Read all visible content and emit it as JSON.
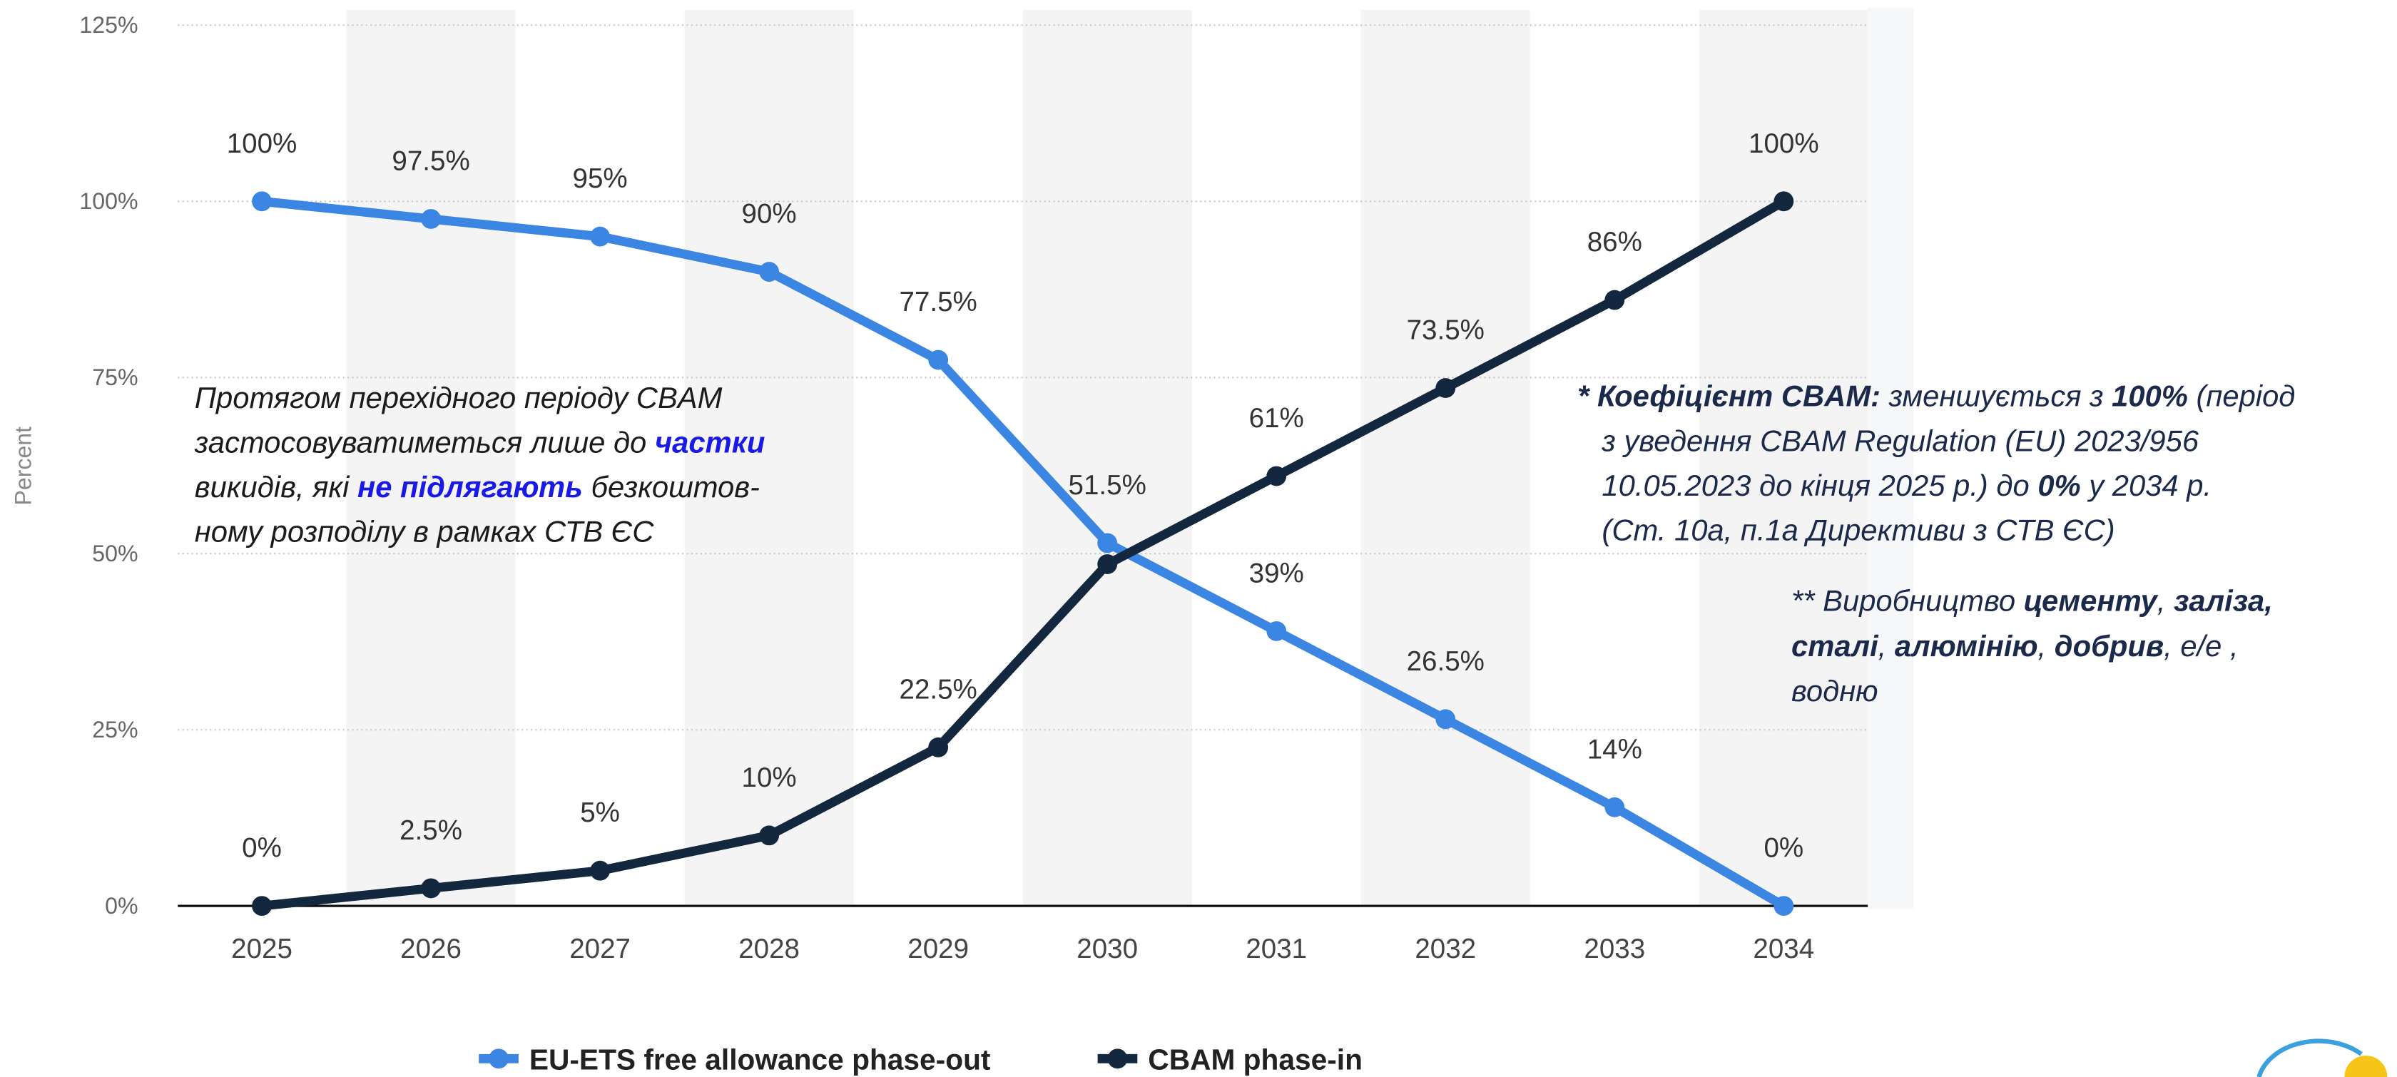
{
  "chart_data": {
    "type": "line",
    "y_label": "Percent",
    "categories": [
      "2025",
      "2026",
      "2027",
      "2028",
      "2029",
      "2030",
      "2031",
      "2032",
      "2033",
      "2034"
    ],
    "series": [
      {
        "name": "EU-ETS free allowance phase-out",
        "color": "#3b86e3",
        "values": [
          100,
          97.5,
          95,
          90,
          77.5,
          51.5,
          39,
          26.5,
          14,
          0
        ],
        "value_labels": [
          "100%",
          "97.5%",
          "95%",
          "90%",
          "77.5%",
          "51.5%",
          "39%",
          "26.5%",
          "14%",
          "0%"
        ]
      },
      {
        "name": "CBAM phase-in",
        "color": "#13273f",
        "values": [
          0,
          2.5,
          5,
          10,
          22.5,
          48.5,
          61,
          73.5,
          86,
          100
        ],
        "value_labels": [
          "0%",
          "2.5%",
          "5%",
          "10%",
          "22.5%",
          null,
          "61%",
          "73.5%",
          "86%",
          "100%"
        ]
      }
    ],
    "ylim": [
      0,
      125
    ],
    "yticks": [
      {
        "value": 0,
        "label": "0%"
      },
      {
        "value": 25,
        "label": "25%"
      },
      {
        "value": 50,
        "label": "50%"
      },
      {
        "value": 75,
        "label": "75%"
      },
      {
        "value": 100,
        "label": "100%"
      },
      {
        "value": 125,
        "label": "125%"
      }
    ],
    "grid": true,
    "legend": "bottom",
    "annotations": [
      {
        "lines": [
          [
            {
              "text": "Протягом перехідного періоду CBAM"
            }
          ],
          [
            {
              "text": "застосовуватиметься лише до "
            },
            {
              "text": "частки",
              "bold": true,
              "color": "#1a1ae6"
            }
          ],
          [
            {
              "text": "викидів, які "
            },
            {
              "text": "не підлягають",
              "bold": true,
              "color": "#1a1ae6"
            },
            {
              "text": " безкоштов-"
            }
          ],
          [
            {
              "text": "ному розподілу в рамках СТВ ЄС"
            }
          ]
        ]
      },
      {
        "lines": [
          [
            {
              "text": "* Коефіцієнт CBAM:",
              "bold": true
            },
            {
              "text": " зменшується з "
            },
            {
              "text": "100%",
              "bold": true
            },
            {
              "text": " (період"
            }
          ],
          [
            {
              "text": "з уведення CBAM Regulation (EU) 2023/956"
            }
          ],
          [
            {
              "text": "10.05.2023 до кінця 2025 р.) до "
            },
            {
              "text": "0%",
              "bold": true
            },
            {
              "text": " у 2034 р."
            }
          ],
          [
            {
              "text": "(Ст. 10а, п.1а Директиви з СТВ ЄС)"
            }
          ]
        ]
      },
      {
        "lines": [
          [
            {
              "text": "** Виробництво "
            },
            {
              "text": "цементу",
              "bold": true
            },
            {
              "text": ", "
            },
            {
              "text": "заліза,",
              "bold": true
            }
          ],
          [
            {
              "text": "сталі",
              "bold": true
            },
            {
              "text": ", "
            },
            {
              "text": "алюмінію",
              "bold": true
            },
            {
              "text": ", "
            },
            {
              "text": "добрив",
              "bold": true
            },
            {
              "text": ", е/е ,"
            }
          ],
          [
            {
              "text": "водню"
            }
          ]
        ]
      }
    ]
  }
}
